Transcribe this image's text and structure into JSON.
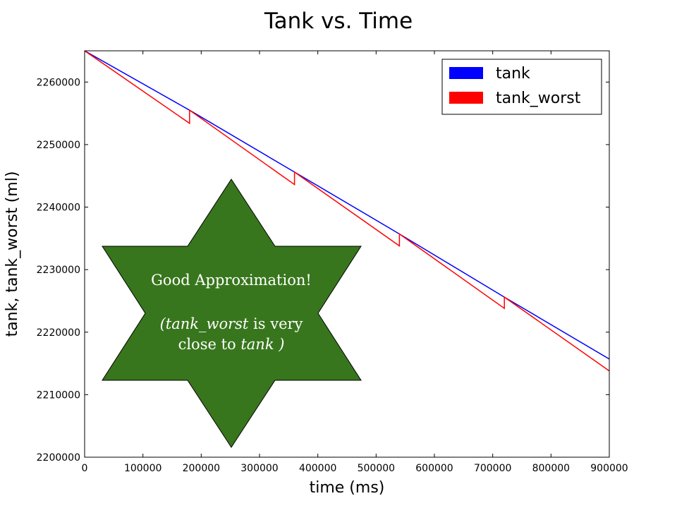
{
  "chart_data": {
    "type": "line",
    "title": "Tank vs. Time",
    "xlabel": "time (ms)",
    "ylabel": "tank, tank_worst (ml)",
    "xlim": [
      0,
      900000
    ],
    "ylim": [
      2200000,
      2265000
    ],
    "xticks": [
      0,
      100000,
      200000,
      300000,
      400000,
      500000,
      600000,
      700000,
      800000,
      900000
    ],
    "xtick_labels": [
      "0",
      "100000",
      "200000",
      "300000",
      "400000",
      "500000",
      "600000",
      "700000",
      "800000",
      "900000"
    ],
    "yticks": [
      2200000,
      2210000,
      2220000,
      2230000,
      2240000,
      2250000,
      2260000
    ],
    "ytick_labels": [
      "2200000",
      "2210000",
      "2220000",
      "2230000",
      "2240000",
      "2250000",
      "2260000"
    ],
    "grid": false,
    "legend_position": "top-right",
    "series": [
      {
        "name": "tank",
        "color": "#0000ff",
        "x": [
          0,
          180000,
          360000,
          540000,
          720000,
          900000
        ],
        "y": [
          2265000,
          2255500,
          2245600,
          2235700,
          2225600,
          2215700
        ]
      },
      {
        "name": "tank_worst",
        "color": "#ff0000",
        "x": [
          0,
          180000,
          180000,
          360000,
          360000,
          540000,
          540000,
          720000,
          720000,
          900000
        ],
        "y": [
          2265000,
          2253400,
          2255500,
          2243600,
          2245600,
          2233800,
          2235700,
          2223800,
          2225600,
          2213800
        ]
      }
    ],
    "annotation": {
      "shape": "six-pointed star",
      "fill_color": "#38761d",
      "line1": "Good Approximation!",
      "line2_italic": "(tank_worst",
      "line2_rest": " is very",
      "line3_plain": "close to ",
      "line3_italic": "tank )"
    }
  }
}
